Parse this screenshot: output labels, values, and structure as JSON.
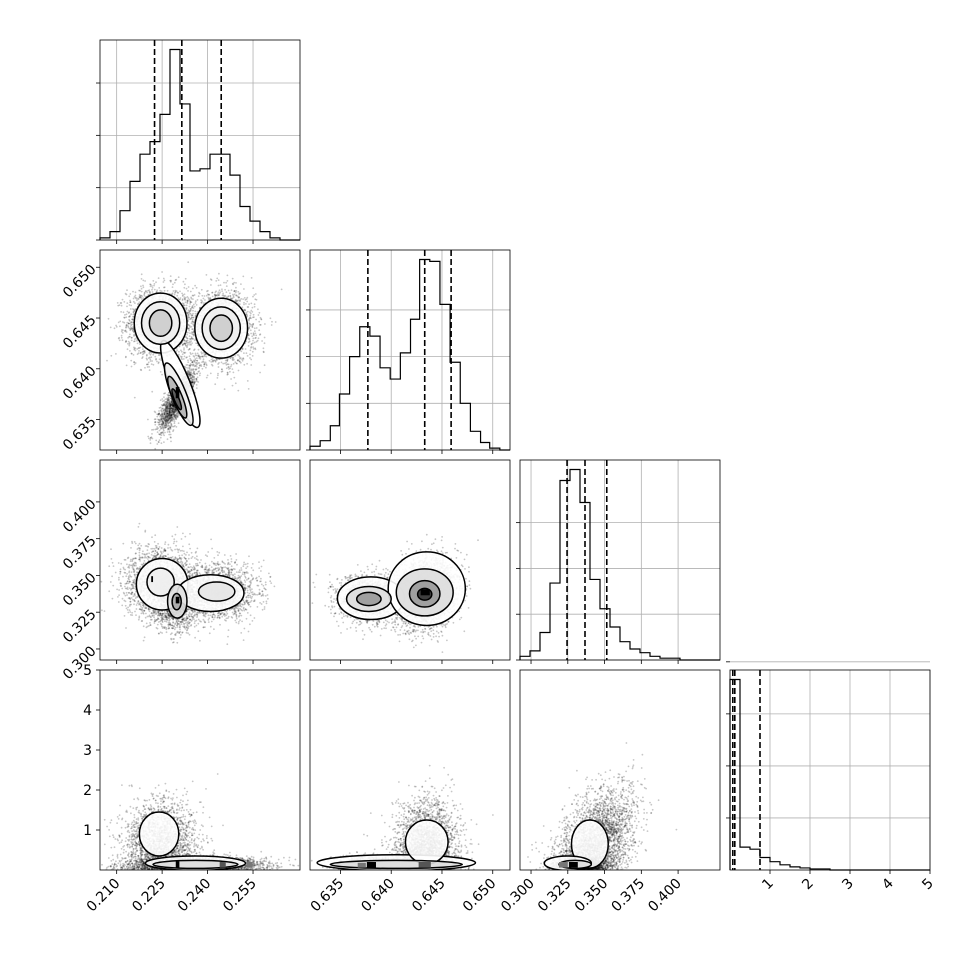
{
  "chart_data": {
    "type": "corner",
    "title": "",
    "params": [
      {
        "range": [
          0.2045,
          0.2705
        ],
        "ticks": [
          {
            "value": 0.21,
            "label": "0.210"
          },
          {
            "value": 0.225,
            "label": "0.225"
          },
          {
            "value": 0.24,
            "label": "0.240"
          },
          {
            "value": 0.255,
            "label": "0.255"
          }
        ],
        "quantiles": [
          0.2225,
          0.2315,
          0.2445
        ],
        "hist": {
          "edges": [
            0.2045,
            0.2078,
            0.2111,
            0.2144,
            0.2177,
            0.221,
            0.2243,
            0.2276,
            0.2309,
            0.2342,
            0.2375,
            0.2408,
            0.2441,
            0.2474,
            0.2507,
            0.254,
            0.2573,
            0.2606,
            0.2639,
            0.2672,
            0.2705
          ],
          "counts": [
            1,
            4,
            14,
            28,
            41,
            47,
            60,
            91,
            65,
            33,
            34,
            41,
            41,
            31,
            16,
            9,
            4,
            1,
            0,
            0
          ],
          "ticks": [
            0,
            25,
            50,
            75
          ]
        }
      },
      {
        "range": [
          0.632,
          0.6517
        ],
        "ticks": [
          {
            "value": 0.635,
            "label": "0.635"
          },
          {
            "value": 0.64,
            "label": "0.640"
          },
          {
            "value": 0.645,
            "label": "0.645"
          },
          {
            "value": 0.65,
            "label": "0.650"
          }
        ],
        "quantiles": [
          0.6377,
          0.6433,
          0.6459
        ],
        "hist": {
          "edges": [
            0.632,
            0.633,
            0.634,
            0.6349,
            0.6359,
            0.6369,
            0.6379,
            0.6389,
            0.6399,
            0.6409,
            0.6419,
            0.6428,
            0.6438,
            0.6448,
            0.6458,
            0.6468,
            0.6478,
            0.6488,
            0.6497,
            0.6507,
            0.6517
          ],
          "counts": [
            2,
            5,
            13,
            30,
            50,
            66,
            61,
            44,
            38,
            52,
            70,
            102,
            101,
            78,
            47,
            25,
            10,
            4,
            1,
            0
          ],
          "ticks": [
            0,
            25,
            50,
            75
          ]
        }
      },
      {
        "range": [
          0.2925,
          0.4285
        ],
        "ticks": [
          {
            "value": 0.3,
            "label": "0.300"
          },
          {
            "value": 0.325,
            "label": "0.325"
          },
          {
            "value": 0.35,
            "label": "0.350"
          },
          {
            "value": 0.375,
            "label": "0.375"
          },
          {
            "value": 0.4,
            "label": "0.400"
          }
        ],
        "quantiles": [
          0.3245,
          0.3367,
          0.3515
        ],
        "hist": {
          "edges": [
            0.2925,
            0.2993,
            0.3061,
            0.3129,
            0.3197,
            0.3265,
            0.3333,
            0.3401,
            0.3469,
            0.3537,
            0.3605,
            0.3673,
            0.3741,
            0.3809,
            0.3877,
            0.3945,
            0.4013,
            0.4081,
            0.4149,
            0.4217,
            0.4285
          ],
          "counts": [
            2,
            5,
            15,
            42,
            98,
            104,
            86,
            44,
            28,
            18,
            10,
            6,
            4,
            2,
            1,
            1,
            0,
            0,
            0,
            0
          ],
          "ticks": [
            0,
            25,
            50,
            75
          ]
        }
      },
      {
        "range": [
          0.0,
          5.0
        ],
        "ticks": [
          {
            "value": 1,
            "label": "1"
          },
          {
            "value": 2,
            "label": "2"
          },
          {
            "value": 3,
            "label": "3"
          },
          {
            "value": 4,
            "label": "4"
          },
          {
            "value": 5,
            "label": "5"
          }
        ],
        "quantiles": [
          0.07,
          0.12,
          0.75
        ],
        "hist": {
          "edges": [
            0.0,
            0.25,
            0.5,
            0.75,
            1.0,
            1.25,
            1.5,
            1.75,
            2.0,
            2.25,
            2.5,
            2.75,
            3.0,
            3.25,
            3.5,
            3.75,
            4.0,
            4.25,
            4.5,
            4.75,
            5.0
          ],
          "counts": [
            183,
            22,
            20,
            12,
            8,
            5,
            3,
            2,
            1,
            1,
            0,
            0,
            0,
            0,
            0,
            0,
            0,
            0,
            0,
            0
          ],
          "ticks": [
            50,
            100,
            150,
            200
          ]
        }
      }
    ],
    "pairs": [
      {
        "row": 1,
        "col": 0,
        "clusters": [
          {
            "mx": 0.2245,
            "my": 0.6445,
            "sx": 0.0055,
            "sy": 0.00175,
            "rho": 0.0,
            "n": 2200
          },
          {
            "mx": 0.2445,
            "my": 0.644,
            "sx": 0.0055,
            "sy": 0.00175,
            "rho": 0.0,
            "n": 2200
          },
          {
            "mx": 0.23,
            "my": 0.637,
            "sx": 0.003,
            "sy": 0.00155,
            "rho": 0.8,
            "n": 1800
          }
        ],
        "contours": [
          {
            "cx": 0.2245,
            "cy": 0.6445,
            "rx": 0.0087,
            "ry": 0.00295,
            "angle": 0,
            "fill": "#ffffff"
          },
          {
            "cx": 0.2445,
            "cy": 0.644,
            "rx": 0.0087,
            "ry": 0.00295,
            "angle": 0,
            "fill": "#ffffff"
          },
          {
            "cx": 0.231,
            "cy": 0.6385,
            "rx": 0.0032,
            "ry": 0.0046,
            "angle": -22,
            "fill": "#ffffff"
          },
          {
            "cx": 0.2245,
            "cy": 0.6445,
            "rx": 0.0063,
            "ry": 0.0021,
            "angle": 0,
            "fill": "#eeeeee"
          },
          {
            "cx": 0.2445,
            "cy": 0.644,
            "rx": 0.0063,
            "ry": 0.0021,
            "angle": 0,
            "fill": "#eeeeee"
          },
          {
            "cx": 0.2305,
            "cy": 0.6375,
            "rx": 0.0024,
            "ry": 0.0033,
            "angle": -22,
            "fill": "#eeeeee"
          },
          {
            "cx": 0.2245,
            "cy": 0.6445,
            "rx": 0.0037,
            "ry": 0.0013,
            "angle": 0,
            "fill": "#cccccc"
          },
          {
            "cx": 0.2445,
            "cy": 0.644,
            "rx": 0.0037,
            "ry": 0.0013,
            "angle": 0,
            "fill": "#cccccc"
          },
          {
            "cx": 0.23,
            "cy": 0.6372,
            "rx": 0.0016,
            "ry": 0.0022,
            "angle": -22,
            "fill": "#b3b3b3"
          },
          {
            "cx": 0.2298,
            "cy": 0.637,
            "rx": 0.0008,
            "ry": 0.0011,
            "angle": -22,
            "fill": "#555555"
          }
        ],
        "pixels": [
          {
            "x": 0.2295,
            "y": 0.6371,
            "w": 0.0012,
            "h": 0.0011,
            "fill": "#000000"
          }
        ]
      },
      {
        "row": 2,
        "col": 0,
        "clusters": [
          {
            "mx": 0.2245,
            "my": 0.345,
            "sx": 0.006,
            "sy": 0.012,
            "rho": 0.0,
            "n": 2000
          },
          {
            "mx": 0.23,
            "my": 0.332,
            "sx": 0.0035,
            "sy": 0.009,
            "rho": 0.0,
            "n": 1500
          },
          {
            "mx": 0.244,
            "my": 0.339,
            "sx": 0.006,
            "sy": 0.009,
            "rho": 0.0,
            "n": 1800
          }
        ],
        "contours": [
          {
            "cx": 0.225,
            "cy": 0.344,
            "rx": 0.0085,
            "ry": 0.0175,
            "angle": 0,
            "fill": "#ffffff"
          },
          {
            "cx": 0.241,
            "cy": 0.338,
            "rx": 0.011,
            "ry": 0.0125,
            "angle": 0,
            "fill": "#ffffff"
          },
          {
            "cx": 0.2245,
            "cy": 0.3455,
            "rx": 0.0045,
            "ry": 0.0095,
            "angle": 0,
            "fill": "#eeeeee"
          },
          {
            "cx": 0.23,
            "cy": 0.3325,
            "rx": 0.0032,
            "ry": 0.0115,
            "angle": 0,
            "fill": "#e0e0e0"
          },
          {
            "cx": 0.243,
            "cy": 0.339,
            "rx": 0.006,
            "ry": 0.0065,
            "angle": 0,
            "fill": "#e6e6e6"
          },
          {
            "cx": 0.2298,
            "cy": 0.3322,
            "rx": 0.0015,
            "ry": 0.0055,
            "angle": 0,
            "fill": "#aaaaaa"
          }
        ],
        "pixels": [
          {
            "x": 0.2295,
            "y": 0.331,
            "w": 0.0012,
            "h": 0.0045,
            "fill": "#000000"
          },
          {
            "x": 0.2214,
            "y": 0.3455,
            "w": 0.0006,
            "h": 0.004,
            "fill": "#000000"
          }
        ]
      },
      {
        "row": 2,
        "col": 1,
        "clusters": [
          {
            "mx": 0.6378,
            "my": 0.334,
            "sx": 0.0015,
            "sy": 0.008,
            "rho": 0.0,
            "n": 1600
          },
          {
            "mx": 0.6435,
            "my": 0.338,
            "sx": 0.0015,
            "sy": 0.012,
            "rho": 0.2,
            "n": 2600
          }
        ],
        "contours": [
          {
            "cx": 0.638,
            "cy": 0.3345,
            "rx": 0.0033,
            "ry": 0.0145,
            "angle": 0,
            "fill": "#ffffff"
          },
          {
            "cx": 0.6435,
            "cy": 0.341,
            "rx": 0.0038,
            "ry": 0.025,
            "angle": 0,
            "fill": "#ffffff"
          },
          {
            "cx": 0.6378,
            "cy": 0.334,
            "rx": 0.0022,
            "ry": 0.0085,
            "angle": 0,
            "fill": "#dddddd"
          },
          {
            "cx": 0.6433,
            "cy": 0.3385,
            "rx": 0.0028,
            "ry": 0.016,
            "angle": 0,
            "fill": "#dddddd"
          },
          {
            "cx": 0.6378,
            "cy": 0.334,
            "rx": 0.0012,
            "ry": 0.0045,
            "angle": 0,
            "fill": "#999999"
          },
          {
            "cx": 0.6433,
            "cy": 0.3375,
            "rx": 0.0015,
            "ry": 0.009,
            "angle": 0,
            "fill": "#999999"
          },
          {
            "cx": 0.6433,
            "cy": 0.3372,
            "rx": 0.0007,
            "ry": 0.004,
            "angle": 0,
            "fill": "#333333"
          }
        ],
        "pixels": [
          {
            "x": 0.6429,
            "y": 0.3365,
            "w": 0.0009,
            "h": 0.004,
            "fill": "#000000"
          }
        ]
      },
      {
        "row": 3,
        "col": 0,
        "clusters": [
          {
            "mx": 0.2245,
            "my": 0.65,
            "sx": 0.006,
            "sy": 0.55,
            "rho": 0.0,
            "n": 2200
          },
          {
            "mx": 0.236,
            "my": 0.12,
            "sx": 0.011,
            "sy": 0.1,
            "rho": 0.0,
            "n": 2600
          }
        ],
        "contours": [
          {
            "cx": 0.224,
            "cy": 0.9,
            "rx": 0.0065,
            "ry": 0.55,
            "angle": 0,
            "fill": "#ffffff"
          },
          {
            "cx": 0.236,
            "cy": 0.17,
            "rx": 0.0165,
            "ry": 0.18,
            "angle": 0,
            "fill": "#ffffff"
          },
          {
            "cx": 0.236,
            "cy": 0.14,
            "rx": 0.014,
            "ry": 0.1,
            "angle": 0,
            "fill": "#dddddd"
          }
        ],
        "pixels": [
          {
            "x": 0.2295,
            "y": 0.06,
            "w": 0.0012,
            "h": 0.16,
            "fill": "#000000"
          },
          {
            "x": 0.244,
            "y": 0.06,
            "w": 0.002,
            "h": 0.14,
            "fill": "#555555"
          },
          {
            "x": 0.2528,
            "y": 0.06,
            "w": 0.002,
            "h": 0.14,
            "fill": "#777777"
          }
        ]
      },
      {
        "row": 3,
        "col": 1,
        "clusters": [
          {
            "mx": 0.638,
            "my": 0.12,
            "sx": 0.0015,
            "sy": 0.1,
            "rho": 0.0,
            "n": 1600
          },
          {
            "mx": 0.6435,
            "my": 0.45,
            "sx": 0.0015,
            "sy": 0.6,
            "rho": 0.0,
            "n": 3000
          }
        ],
        "contours": [
          {
            "cx": 0.6405,
            "cy": 0.18,
            "rx": 0.0078,
            "ry": 0.2,
            "angle": 0,
            "fill": "#ffffff"
          },
          {
            "cx": 0.6435,
            "cy": 0.7,
            "rx": 0.0021,
            "ry": 0.55,
            "angle": 0,
            "fill": "#ffffff"
          },
          {
            "cx": 0.6405,
            "cy": 0.14,
            "rx": 0.0065,
            "ry": 0.1,
            "angle": 0,
            "fill": "#dddddd"
          }
        ],
        "pixels": [
          {
            "x": 0.6376,
            "y": 0.06,
            "w": 0.0009,
            "h": 0.14,
            "fill": "#000000"
          },
          {
            "x": 0.6427,
            "y": 0.06,
            "w": 0.0012,
            "h": 0.14,
            "fill": "#555555"
          },
          {
            "x": 0.6367,
            "y": 0.06,
            "w": 0.0008,
            "h": 0.12,
            "fill": "#777777"
          }
        ]
      },
      {
        "row": 3,
        "col": 2,
        "clusters": [
          {
            "mx": 0.333,
            "my": 0.12,
            "sx": 0.008,
            "sy": 0.1,
            "rho": 0.0,
            "n": 2000
          },
          {
            "mx": 0.345,
            "my": 0.7,
            "sx": 0.013,
            "sy": 0.65,
            "rho": 0.4,
            "n": 3000
          }
        ],
        "contours": [
          {
            "cx": 0.34,
            "cy": 0.65,
            "rx": 0.0125,
            "ry": 0.6,
            "angle": 0,
            "fill": "#ffffff"
          },
          {
            "cx": 0.325,
            "cy": 0.17,
            "rx": 0.016,
            "ry": 0.18,
            "angle": 0,
            "fill": "#ffffff"
          },
          {
            "cx": 0.33,
            "cy": 0.14,
            "rx": 0.011,
            "ry": 0.1,
            "angle": 0,
            "fill": "#dddddd"
          }
        ],
        "pixels": [
          {
            "x": 0.3258,
            "y": 0.06,
            "w": 0.006,
            "h": 0.14,
            "fill": "#000000"
          },
          {
            "x": 0.319,
            "y": 0.06,
            "w": 0.006,
            "h": 0.14,
            "fill": "#777777"
          }
        ]
      }
    ]
  }
}
